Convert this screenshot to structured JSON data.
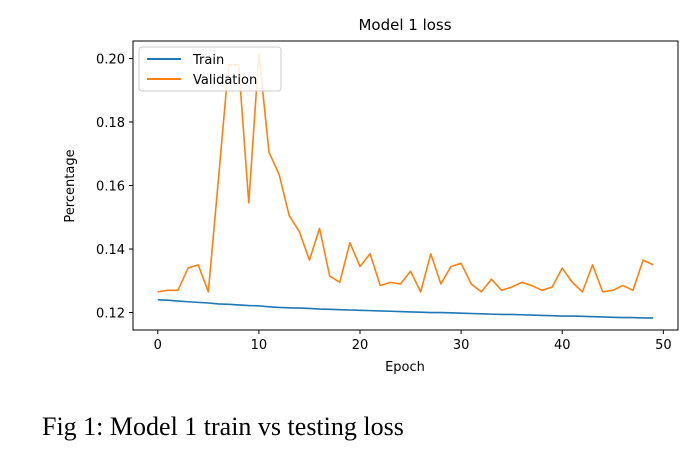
{
  "caption": "Fig 1: Model 1 train vs testing loss",
  "chart_data": {
    "type": "line",
    "title": "Model 1 loss",
    "xlabel": "Epoch",
    "ylabel": "Percentage",
    "xlim": [
      -2.45,
      51.45
    ],
    "ylim": [
      0.1145,
      0.2055
    ],
    "xticks": [
      0,
      10,
      20,
      30,
      40,
      50
    ],
    "yticks": [
      0.12,
      0.14,
      0.16,
      0.18,
      0.2
    ],
    "ytick_labels": [
      "0.12",
      "0.14",
      "0.16",
      "0.18",
      "0.20"
    ],
    "grid": false,
    "legend_position": "top-left",
    "x": [
      0,
      1,
      2,
      3,
      4,
      5,
      6,
      7,
      8,
      9,
      10,
      11,
      12,
      13,
      14,
      15,
      16,
      17,
      18,
      19,
      20,
      21,
      22,
      23,
      24,
      25,
      26,
      27,
      28,
      29,
      30,
      31,
      32,
      33,
      34,
      35,
      36,
      37,
      38,
      39,
      40,
      41,
      42,
      43,
      44,
      45,
      46,
      47,
      48,
      49
    ],
    "series": [
      {
        "name": "Train",
        "color": "#1f77b4",
        "values": [
          0.124,
          0.1239,
          0.1236,
          0.1234,
          0.1232,
          0.123,
          0.1227,
          0.1226,
          0.1224,
          0.1222,
          0.1221,
          0.1218,
          0.1216,
          0.1215,
          0.1214,
          0.1213,
          0.1211,
          0.121,
          0.1209,
          0.1208,
          0.1207,
          0.1206,
          0.1205,
          0.1204,
          0.1203,
          0.1202,
          0.1201,
          0.12,
          0.12,
          0.1199,
          0.1198,
          0.1197,
          0.1196,
          0.1195,
          0.1194,
          0.1194,
          0.1193,
          0.1192,
          0.1191,
          0.119,
          0.1189,
          0.1189,
          0.1188,
          0.1187,
          0.1186,
          0.1185,
          0.1184,
          0.1184,
          0.1183,
          0.1183
        ]
      },
      {
        "name": "Validation",
        "color": "#ff7f0e",
        "values": [
          0.1265,
          0.127,
          0.127,
          0.134,
          0.135,
          0.1265,
          0.162,
          0.198,
          0.198,
          0.1545,
          0.2015,
          0.1705,
          0.1635,
          0.1505,
          0.1455,
          0.1365,
          0.1465,
          0.1315,
          0.1295,
          0.142,
          0.1345,
          0.1385,
          0.1285,
          0.1295,
          0.129,
          0.133,
          0.1265,
          0.1385,
          0.129,
          0.1345,
          0.1355,
          0.129,
          0.1265,
          0.1305,
          0.127,
          0.128,
          0.1295,
          0.1285,
          0.127,
          0.128,
          0.134,
          0.1295,
          0.1265,
          0.135,
          0.1265,
          0.127,
          0.1285,
          0.127,
          0.1365,
          0.135
        ]
      }
    ]
  }
}
